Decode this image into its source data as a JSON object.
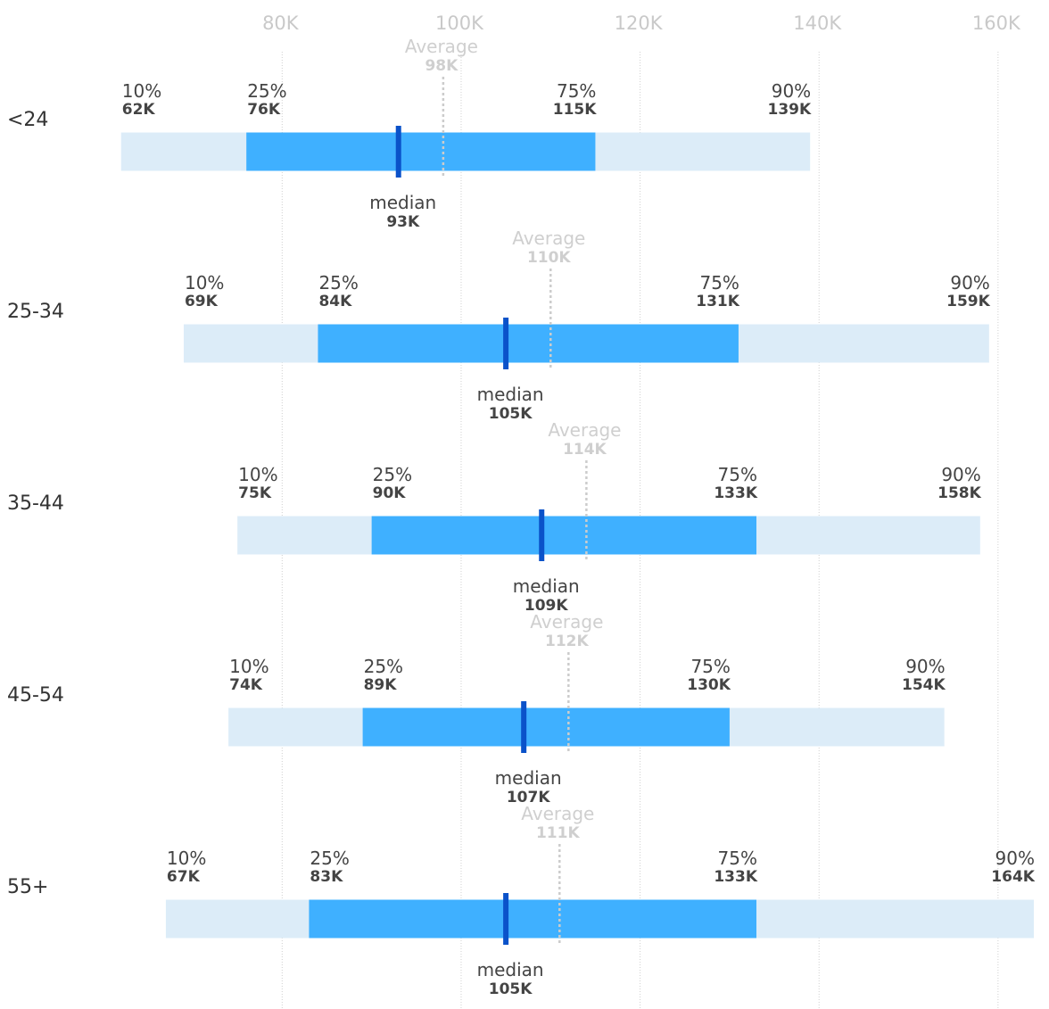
{
  "chart_data": {
    "type": "box",
    "xlim": [
      54000,
      164500
    ],
    "ticks": [
      {
        "value": 80000,
        "label": "80K"
      },
      {
        "value": 100000,
        "label": "100K"
      },
      {
        "value": 120000,
        "label": "120K"
      },
      {
        "value": 140000,
        "label": "140K"
      },
      {
        "value": 160000,
        "label": "160K"
      }
    ],
    "labels": {
      "p10": "10%",
      "p25": "25%",
      "p75": "75%",
      "p90": "90%",
      "median": "median",
      "average": "Average"
    },
    "colors": {
      "outer": "#dcecf8",
      "inner": "#3fb0ff",
      "median": "#0a52c9",
      "average": "#cccccc",
      "grid": "#d0d0d0"
    },
    "rows": [
      {
        "category": "<24",
        "p10": 62000,
        "p10_label": "62K",
        "p25": 76000,
        "p25_label": "76K",
        "median": 93000,
        "median_label": "93K",
        "average": 98000,
        "average_label": "98K",
        "p75": 115000,
        "p75_label": "115K",
        "p90": 139000,
        "p90_label": "139K"
      },
      {
        "category": "25-34",
        "p10": 69000,
        "p10_label": "69K",
        "p25": 84000,
        "p25_label": "84K",
        "median": 105000,
        "median_label": "105K",
        "average": 110000,
        "average_label": "110K",
        "p75": 131000,
        "p75_label": "131K",
        "p90": 159000,
        "p90_label": "159K"
      },
      {
        "category": "35-44",
        "p10": 75000,
        "p10_label": "75K",
        "p25": 90000,
        "p25_label": "90K",
        "median": 109000,
        "median_label": "109K",
        "average": 114000,
        "average_label": "114K",
        "p75": 133000,
        "p75_label": "133K",
        "p90": 158000,
        "p90_label": "158K"
      },
      {
        "category": "45-54",
        "p10": 74000,
        "p10_label": "74K",
        "p25": 89000,
        "p25_label": "89K",
        "median": 107000,
        "median_label": "107K",
        "average": 112000,
        "average_label": "112K",
        "p75": 130000,
        "p75_label": "130K",
        "p90": 154000,
        "p90_label": "154K"
      },
      {
        "category": "55+",
        "p10": 67000,
        "p10_label": "67K",
        "p25": 83000,
        "p25_label": "83K",
        "median": 105000,
        "median_label": "105K",
        "average": 111000,
        "average_label": "111K",
        "p75": 133000,
        "p75_label": "133K",
        "p90": 164000,
        "p90_label": "164K"
      }
    ]
  }
}
